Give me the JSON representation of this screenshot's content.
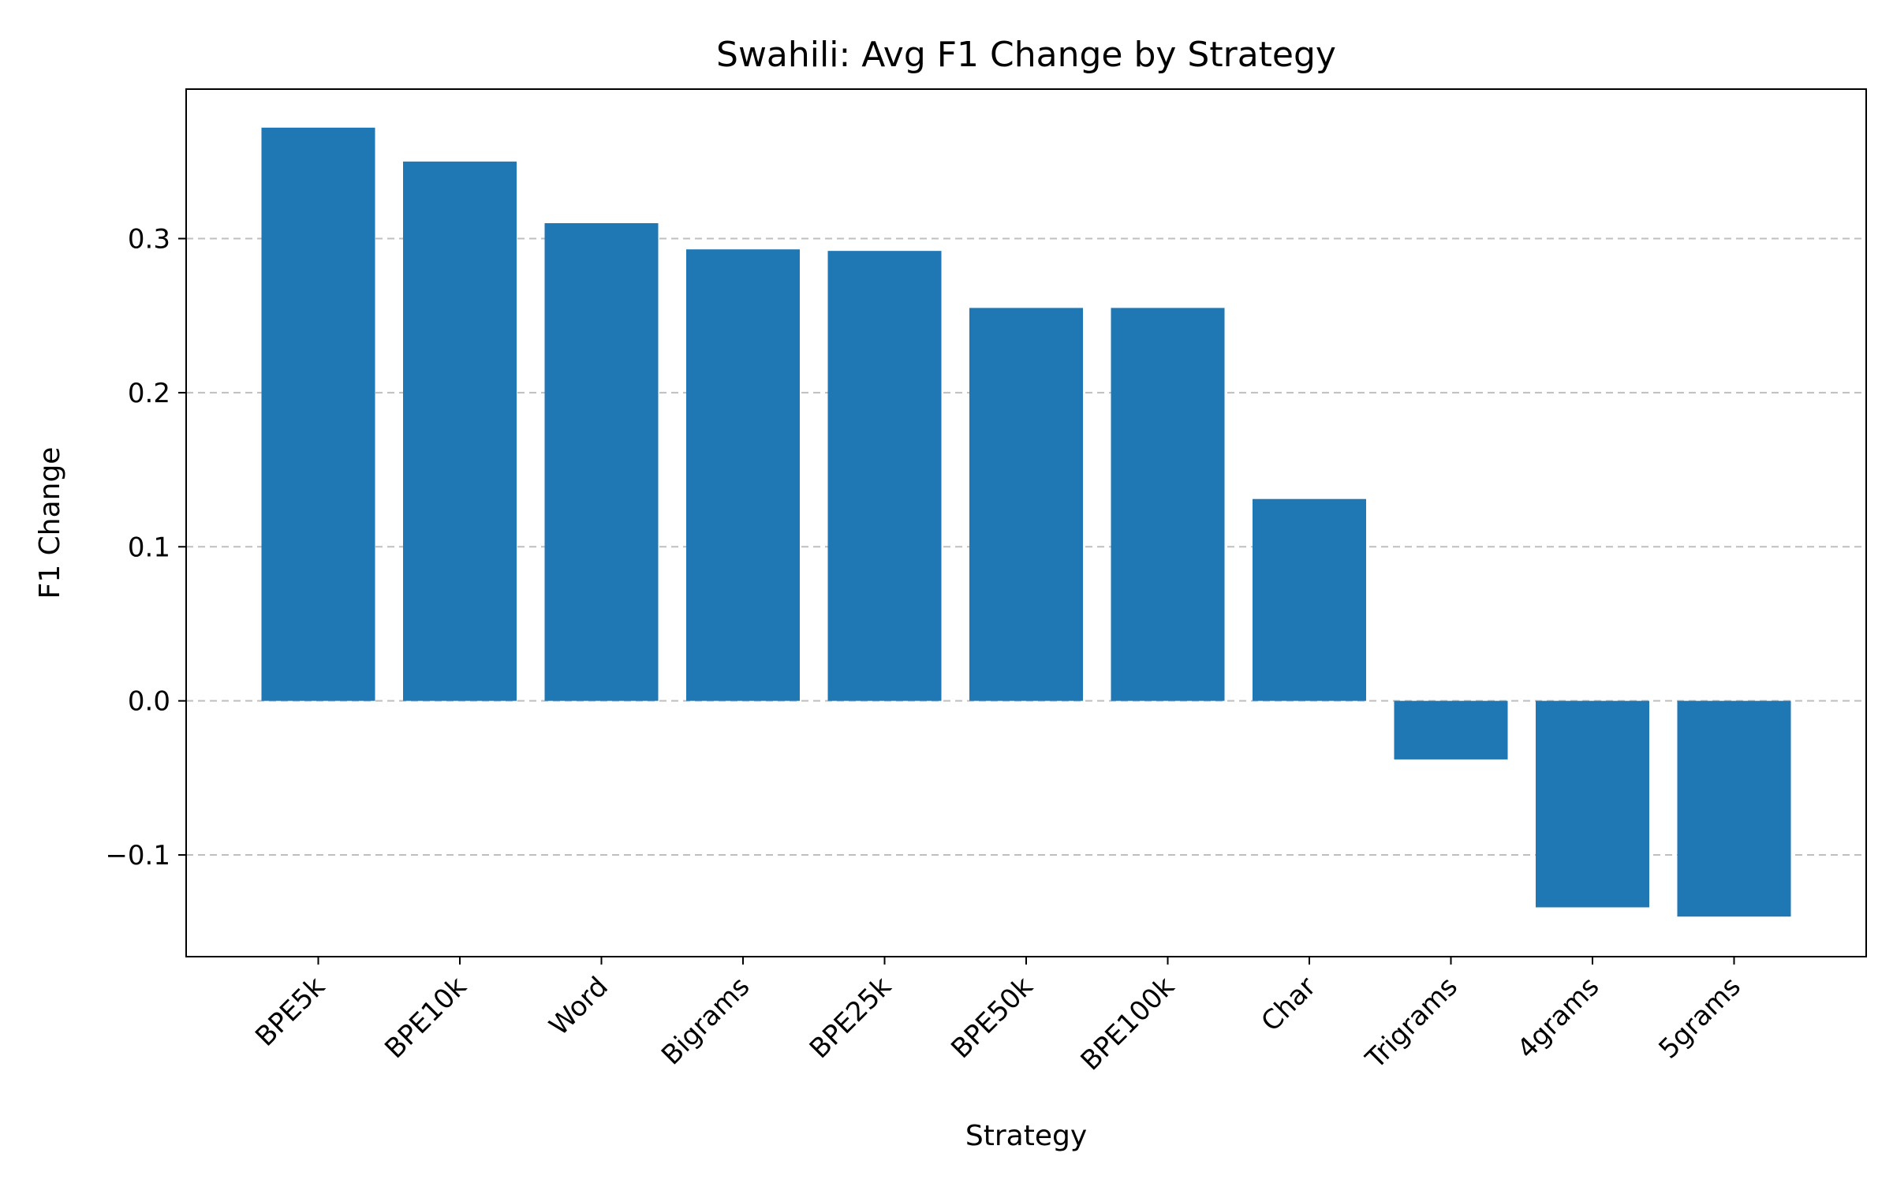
{
  "chart_data": {
    "type": "bar",
    "title": "Swahili: Avg F1 Change by Strategy",
    "xlabel": "Strategy",
    "ylabel": "F1 Change",
    "categories": [
      "BPE5k",
      "BPE10k",
      "Word",
      "Bigrams",
      "BPE25k",
      "BPE50k",
      "BPE100k",
      "Char",
      "Trigrams",
      "4grams",
      "5grams"
    ],
    "values": [
      0.372,
      0.35,
      0.31,
      0.293,
      0.292,
      0.255,
      0.255,
      0.131,
      -0.038,
      -0.134,
      -0.14
    ],
    "ylim": [
      -0.166,
      0.397
    ],
    "yticks": [
      -0.1,
      0.0,
      0.1,
      0.2,
      0.3
    ],
    "ytick_labels": [
      "−0.1",
      "0.0",
      "0.1",
      "0.2",
      "0.3"
    ],
    "bar_color": "#1f77b4",
    "grid": "y-dashed"
  }
}
